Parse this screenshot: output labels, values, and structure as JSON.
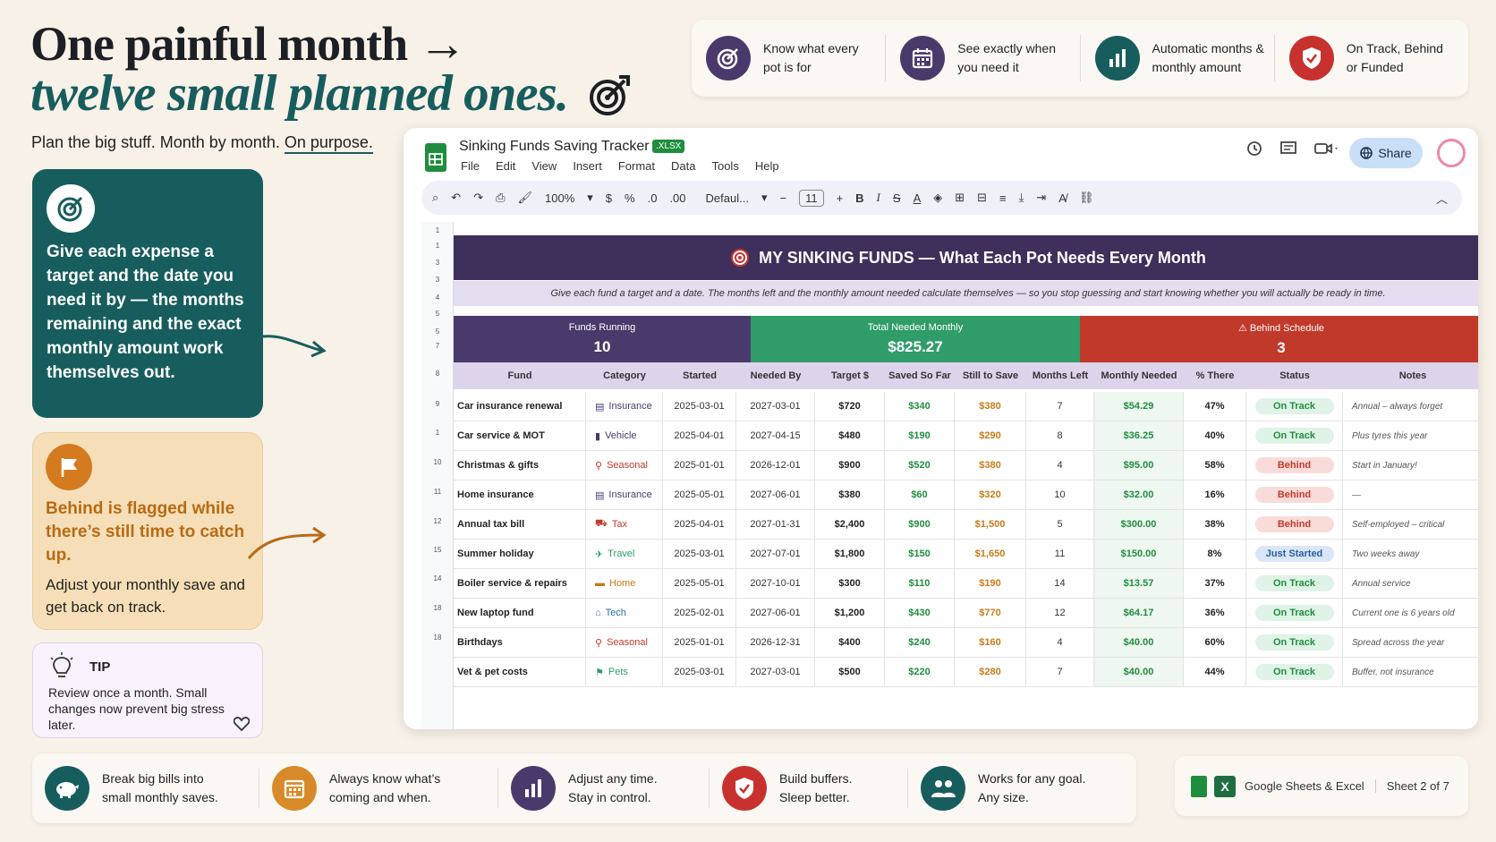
{
  "hero": {
    "line1": "One painful month →",
    "line2": "twelve small planned ones.",
    "tagline_pre": "Plan the big stuff. Month by month. ",
    "tagline_underlined": "On purpose."
  },
  "top_features": [
    {
      "icon": "target-icon",
      "color": "#4a3a6b",
      "text": "Know what every pot is for"
    },
    {
      "icon": "calendar-icon",
      "color": "#4a3a6b",
      "text": "See exactly when you need it"
    },
    {
      "icon": "bar-chart-icon",
      "color": "#175d5e",
      "text": "Automatic months & monthly amount"
    },
    {
      "icon": "shield-check-icon",
      "color": "#c8322e",
      "text": "On Track, Behind or Funded"
    }
  ],
  "card_target": {
    "text": "Give each expense a target and the date you need it by — the months remaining and the exact monthly amount work themselves out."
  },
  "card_behind": {
    "heading": "Behind is flagged while there’s still time to catch up.",
    "body": "Adjust your monthly save and get back on track."
  },
  "tip": {
    "title": "TIP",
    "body": "Review once a month. Small changes now prevent big stress later."
  },
  "window": {
    "doc_title": "Sinking Funds Saving Tracker",
    "badge": ".XLSX",
    "menu": [
      "File",
      "Edit",
      "View",
      "Insert",
      "Format",
      "Data",
      "Tools",
      "Help"
    ],
    "share_label": "Share",
    "zoom": "100%",
    "font": "Defaul...",
    "font_size": "11",
    "toolbar_currency": "$",
    "toolbar_percent": "%",
    "toolbar_dec_less": ".0",
    "toolbar_dec_more": ".00"
  },
  "sheet": {
    "title": "MY SINKING FUNDS — What Each Pot Needs Every Month",
    "subtitle": "Give each fund a target and a date. The months left and the monthly amount needed calculate themselves — so you stop guessing and start knowing whether you will actually be ready in time.",
    "stats": [
      {
        "label": "Funds Running",
        "value": "10",
        "color": "#4a3a6b"
      },
      {
        "label": "Total Needed Monthly",
        "value": "$825.27",
        "color": "#2f9c6a"
      },
      {
        "label": "⚠ Behind Schedule",
        "value": "3",
        "color": "#c0392b"
      }
    ],
    "row_numbers": [
      "1",
      "1",
      "3",
      "3",
      "4",
      "5",
      "5",
      "7",
      "8",
      "9",
      "1",
      "10",
      "11",
      "12",
      "15",
      "14",
      "18",
      "18"
    ],
    "columns": [
      "Fund",
      "Category",
      "Started",
      "Needed By",
      "Target $",
      "Saved So Far",
      "Still to Save",
      "Months Left",
      "Monthly Needed",
      "% There",
      "Status",
      "Notes"
    ],
    "rows": [
      {
        "fund": "Car insurance renewal",
        "cat_icon": "building-icon",
        "cat": "Insurance",
        "cat_color": "#4a3a6b",
        "started": "2025-03-01",
        "needed": "2027-03-01",
        "target": "$720",
        "saved": "$340",
        "still": "$380",
        "months": "7",
        "monthly": "$54.29",
        "pct": "47%",
        "status": "On Track",
        "note": "Annual – always forget"
      },
      {
        "fund": "Car service & MOT",
        "cat_icon": "bottle-icon",
        "cat": "Vehicle",
        "cat_color": "#4a3a6b",
        "started": "2025-04-01",
        "needed": "2027-04-15",
        "target": "$480",
        "saved": "$190",
        "still": "$290",
        "months": "8",
        "monthly": "$36.25",
        "pct": "40%",
        "status": "On Track",
        "note": "Plus tyres this year"
      },
      {
        "fund": "Christmas & gifts",
        "cat_icon": "person-icon",
        "cat": "Seasonal",
        "cat_color": "#c0392b",
        "started": "2025-01-01",
        "needed": "2026-12-01",
        "target": "$900",
        "saved": "$520",
        "still": "$380",
        "months": "4",
        "monthly": "$95.00",
        "pct": "58%",
        "status": "Behind",
        "note": "Start in January!"
      },
      {
        "fund": "Home insurance",
        "cat_icon": "building-icon",
        "cat": "Insurance",
        "cat_color": "#4a3a6b",
        "started": "2025-05-01",
        "needed": "2027-06-01",
        "target": "$380",
        "saved": "$60",
        "still": "$320",
        "months": "10",
        "monthly": "$32.00",
        "pct": "16%",
        "status": "Behind",
        "note": "—"
      },
      {
        "fund": "Annual tax bill",
        "cat_icon": "cart-icon",
        "cat": "Tax",
        "cat_color": "#c0392b",
        "started": "2025-04-01",
        "needed": "2027-01-31",
        "target": "$2,400",
        "saved": "$900",
        "still": "$1,500",
        "months": "5",
        "monthly": "$300.00",
        "pct": "38%",
        "status": "Behind",
        "note": "Self-employed – critical"
      },
      {
        "fund": "Summer holiday",
        "cat_icon": "plane-icon",
        "cat": "Travel",
        "cat_color": "#2f9c6a",
        "started": "2025-03-01",
        "needed": "2027-07-01",
        "target": "$1,800",
        "saved": "$150",
        "still": "$1,650",
        "months": "11",
        "monthly": "$150.00",
        "pct": "8%",
        "status": "Just Started",
        "note": "Two weeks away"
      },
      {
        "fund": "Boiler service & repairs",
        "cat_icon": "folder-icon",
        "cat": "Home",
        "cat_color": "#c77a16",
        "started": "2025-05-01",
        "needed": "2027-10-01",
        "target": "$300",
        "saved": "$110",
        "still": "$190",
        "months": "14",
        "monthly": "$13.57",
        "pct": "37%",
        "status": "On Track",
        "note": "Annual service"
      },
      {
        "fund": "New laptop fund",
        "cat_icon": "house-icon",
        "cat": "Tech",
        "cat_color": "#2a6ea8",
        "started": "2025-02-01",
        "needed": "2027-06-01",
        "target": "$1,200",
        "saved": "$430",
        "still": "$770",
        "months": "12",
        "monthly": "$64.17",
        "pct": "36%",
        "status": "On Track",
        "note": "Current one is 6 years old"
      },
      {
        "fund": "Birthdays",
        "cat_icon": "person-icon",
        "cat": "Seasonal",
        "cat_color": "#c0392b",
        "started": "2025-01-01",
        "needed": "2026-12-31",
        "target": "$400",
        "saved": "$240",
        "still": "$160",
        "months": "4",
        "monthly": "$40.00",
        "pct": "60%",
        "status": "On Track",
        "note": "Spread across the year"
      },
      {
        "fund": "Vet & pet costs",
        "cat_icon": "flag-icon",
        "cat": "Pets",
        "cat_color": "#2f9c6a",
        "started": "2025-03-01",
        "needed": "2027-03-01",
        "target": "$500",
        "saved": "$220",
        "still": "$280",
        "months": "7",
        "monthly": "$40.00",
        "pct": "44%",
        "status": "On Track",
        "note": "Buffer, not insurance"
      }
    ]
  },
  "bottom_features": [
    {
      "icon": "piggy-bank-icon",
      "color": "#175d5e",
      "text1": "Break big bills into",
      "text2": "small monthly saves."
    },
    {
      "icon": "calendar-icon",
      "color": "#d88a2a",
      "text1": "Always know what’s",
      "text2": "coming and when."
    },
    {
      "icon": "bar-chart-icon",
      "color": "#4a3a6b",
      "text1": "Adjust any time.",
      "text2": "Stay in control."
    },
    {
      "icon": "shield-check-icon",
      "color": "#c8322e",
      "text1": "Build buffers.",
      "text2": "Sleep better."
    },
    {
      "icon": "people-icon",
      "color": "#175d5e",
      "text1": "Works for any goal.",
      "text2": "Any size."
    }
  ],
  "footer": {
    "apps": "Google Sheets & Excel",
    "sheet": "Sheet 2 of 7"
  }
}
